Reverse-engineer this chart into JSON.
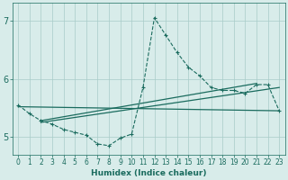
{
  "xlabel": "Humidex (Indice chaleur)",
  "xlim": [
    -0.5,
    23.5
  ],
  "ylim": [
    4.7,
    7.3
  ],
  "yticks": [
    5,
    6,
    7
  ],
  "xticks": [
    0,
    1,
    2,
    3,
    4,
    5,
    6,
    7,
    8,
    9,
    10,
    11,
    12,
    13,
    14,
    15,
    16,
    17,
    18,
    19,
    20,
    21,
    22,
    23
  ],
  "bg_color": "#d8ecea",
  "grid_color": "#a8ccc8",
  "line_color": "#1a6b5e",
  "line1": {
    "x": [
      0,
      1,
      2,
      3,
      4,
      5,
      6,
      7,
      8,
      9,
      10,
      11,
      12,
      13,
      14,
      15,
      16,
      17,
      18,
      19,
      20,
      21,
      22,
      23
    ],
    "y": [
      5.55,
      5.4,
      5.28,
      5.22,
      5.13,
      5.08,
      5.03,
      4.88,
      4.85,
      4.98,
      5.05,
      5.85,
      7.05,
      6.75,
      6.45,
      6.2,
      6.05,
      5.85,
      5.8,
      5.8,
      5.75,
      5.9,
      5.9,
      5.45
    ]
  },
  "line2": {
    "x": [
      0,
      23
    ],
    "y": [
      5.52,
      5.45
    ]
  },
  "line3": {
    "x": [
      2,
      23
    ],
    "y": [
      5.25,
      5.85
    ]
  },
  "line4": {
    "x": [
      2,
      21
    ],
    "y": [
      5.28,
      5.92
    ]
  }
}
